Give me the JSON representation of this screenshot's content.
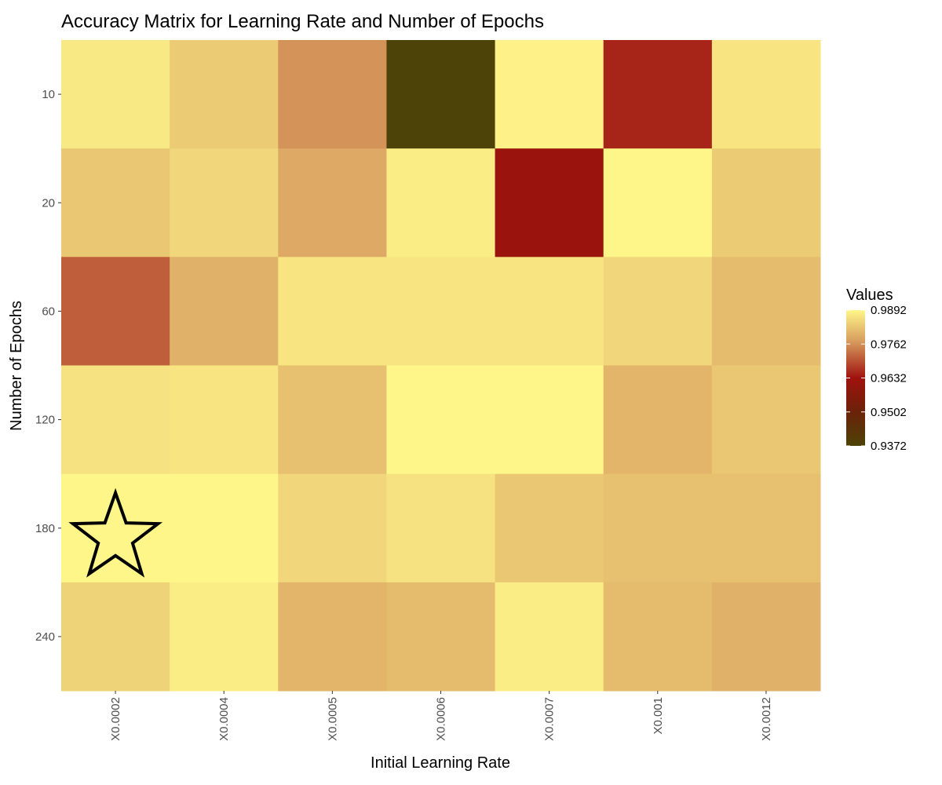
{
  "chart_data": {
    "type": "heatmap",
    "title": "Accuracy Matrix for Learning Rate and Number of Epochs",
    "xlabel": "Initial Learning Rate",
    "ylabel": "Number of Epochs",
    "x_categories": [
      "X0.0002",
      "X0.0004",
      "X0.0005",
      "X0.0006",
      "X0.0007",
      "X0.001",
      "X0.0012"
    ],
    "y_categories": [
      "10",
      "20",
      "60",
      "120",
      "180",
      "240"
    ],
    "values": [
      [
        0.9875,
        0.9835,
        0.9765,
        0.9372,
        0.9885,
        0.965,
        0.987
      ],
      [
        0.983,
        0.985,
        0.979,
        0.988,
        0.962,
        0.99,
        0.9835
      ],
      [
        0.971,
        0.98,
        0.987,
        0.987,
        0.987,
        0.985,
        0.9815
      ],
      [
        0.9865,
        0.987,
        0.982,
        0.99,
        0.99,
        0.9805,
        0.983
      ],
      [
        0.9895,
        0.9895,
        0.985,
        0.9865,
        0.983,
        0.982,
        0.982
      ],
      [
        0.9845,
        0.988,
        0.9805,
        0.9815,
        0.988,
        0.9815,
        0.98
      ]
    ],
    "highlight": {
      "row": 4,
      "col": 0,
      "shape": "star"
    },
    "legend": {
      "title": "Values",
      "position": "right",
      "breaks": [
        0.9892,
        0.9762,
        0.9632,
        0.9502,
        0.9372
      ],
      "break_labels": [
        "0.9892",
        "0.9762",
        "0.9632",
        "0.9502",
        "0.9372"
      ],
      "min": 0.9372,
      "max": 0.9892
    },
    "colors": {
      "low": "#4d4207",
      "mid_low": "#6b2208",
      "mid": "#a0120e",
      "mid_high": "#d9a060",
      "high": "#fff68a"
    },
    "grid": false
  }
}
